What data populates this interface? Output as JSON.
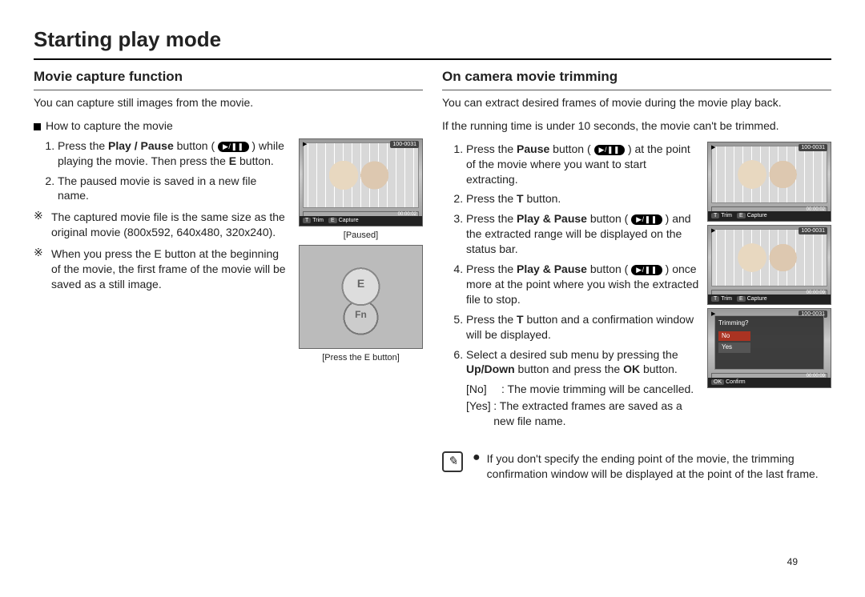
{
  "page": {
    "title": "Starting play mode",
    "number": "49"
  },
  "left": {
    "section_title": "Movie capture function",
    "intro": "You can capture still images from the movie.",
    "howto_heading": "How to capture the movie",
    "steps": [
      {
        "pre": "Press the ",
        "b1": "Play / Pause",
        "mid": " button ( ",
        "icon": "▶/❚❚",
        "post": " ) while playing the movie. Then press the ",
        "b2": "E",
        "post2": " button."
      },
      {
        "text": "The paused movie is saved in a new file name."
      }
    ],
    "notes": [
      "The captured movie file is the same size as the original movie (800x592, 640x480, 320x240).",
      "When you press the E button at the beginning of the movie, the first frame of the movie will be saved as a still image."
    ],
    "thumb1": {
      "file": "100-0031",
      "time": "00:00:02",
      "keys": [
        {
          "k": "T",
          "v": "Trim"
        },
        {
          "k": "E",
          "v": "Capture"
        }
      ],
      "caption": "[Paused]"
    },
    "thumb2": {
      "caption": "[Press the E button]"
    }
  },
  "right": {
    "section_title": "On camera movie trimming",
    "intro1": "You can extract desired frames of movie during the movie play back.",
    "intro2": "If the running time is under 10 seconds, the movie can't be trimmed.",
    "steps": [
      {
        "pre": "Press the ",
        "b1": "Pause",
        "mid": " button ( ",
        "icon": "▶/❚❚",
        "post": " ) at the point of the movie where you want to start extracting."
      },
      {
        "pre": "Press the ",
        "b1": "T",
        "post": " button."
      },
      {
        "pre": "Press the ",
        "b1": "Play & Pause",
        "mid": " button ( ",
        "icon": "▶/❚❚",
        "post": " ) and the extracted range will be displayed on the status bar."
      },
      {
        "pre": "Press the ",
        "b1": "Play & Pause",
        "mid": " button ( ",
        "icon": "▶/❚❚",
        "post": " ) once more at the point where you wish the extracted file to stop."
      },
      {
        "pre": "Press the ",
        "b1": "T",
        "post": " button and a confirmation window will be displayed."
      },
      {
        "pre": "Select a desired sub menu by pressing the ",
        "b1": "Up/Down",
        "mid": " button and press the ",
        "b2": "OK",
        "post": " button."
      }
    ],
    "options": [
      {
        "label": "[No]",
        "text": ": The movie trimming will be cancelled."
      },
      {
        "label": "[Yes]",
        "text": ": The extracted frames are saved as a new file name."
      }
    ],
    "thumbs": [
      {
        "file": "100-0031",
        "time": "00:00:02",
        "keys": [
          {
            "k": "T",
            "v": "Trim"
          },
          {
            "k": "E",
            "v": "Capture"
          }
        ]
      },
      {
        "file": "100-0031",
        "time": "00:00:09",
        "keys": [
          {
            "k": "T",
            "v": "Trim"
          },
          {
            "k": "E",
            "v": "Capture"
          }
        ]
      },
      {
        "file": "100-0031",
        "time": "00:00:09",
        "dialog": {
          "title": "Trimming?",
          "opts": [
            "No",
            "Yes"
          ]
        },
        "keys": [
          {
            "k": "OK",
            "v": "Confirm"
          }
        ]
      }
    ],
    "info_note": "If you don't specify the ending point of the movie, the trimming confirmation window will be displayed at the point of the last frame."
  }
}
